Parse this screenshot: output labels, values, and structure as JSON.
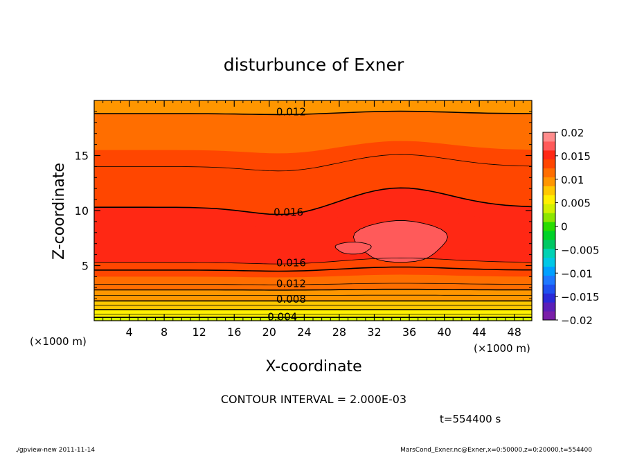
{
  "chart_data": {
    "type": "heatmap",
    "title": "disturbunce of Exner",
    "xlabel": "X-coordinate",
    "ylabel": "Z-coordinate",
    "x_unit": "(×1000 m)",
    "xlim": [
      0,
      50
    ],
    "ylim": [
      0,
      20
    ],
    "x_ticks": [
      "4",
      "8",
      "12",
      "16",
      "20",
      "24",
      "28",
      "32",
      "36",
      "40",
      "44",
      "48"
    ],
    "y_ticks": [
      "5",
      "10",
      "15"
    ],
    "colorbar": {
      "levels": [
        -0.02,
        -0.018,
        -0.016,
        -0.014,
        -0.012,
        -0.01,
        -0.008,
        -0.006,
        -0.004,
        -0.002,
        0,
        0.002,
        0.004,
        0.006,
        0.008,
        0.01,
        0.012,
        0.014,
        0.016,
        0.018,
        0.02
      ],
      "colors": [
        "#7a1fa8",
        "#5b1fb8",
        "#2a2ad8",
        "#1e50f0",
        "#1e78ff",
        "#00a0ff",
        "#00c8e6",
        "#00d2b4",
        "#00c864",
        "#00d228",
        "#28dc00",
        "#8ce600",
        "#d2f000",
        "#fff000",
        "#ffc800",
        "#ff9600",
        "#ff6e00",
        "#ff4600",
        "#ff2814",
        "#ff5a5a",
        "#ff8c8c"
      ],
      "tick_labels": [
        "0.02",
        "0.015",
        "0.01",
        "0.005",
        "0",
        "−0.005",
        "−0.01",
        "−0.015",
        "−0.02"
      ]
    },
    "contour_labels": [
      "0.012",
      "0.016",
      "0.016",
      "0.012",
      "0.008",
      "0.004"
    ],
    "field_bands": [
      {
        "z_top": 20,
        "value": 0.011
      },
      {
        "z_top": 18.8,
        "value": 0.0125
      },
      {
        "z_top": 17.4,
        "value": 0.0135
      },
      {
        "z_top": 15.5,
        "value": 0.0145
      },
      {
        "z_top": 14.0,
        "value": 0.0155
      },
      {
        "z_top": 10.3,
        "value": 0.0165
      },
      {
        "z_top": 9.0,
        "value": 0.0175
      },
      {
        "z_top": 6.2,
        "value": 0.0165
      },
      {
        "z_top": 5.3,
        "value": 0.0155
      },
      {
        "z_top": 4.6,
        "value": 0.0145
      },
      {
        "z_top": 4.0,
        "value": 0.0135
      },
      {
        "z_top": 3.3,
        "value": 0.0125
      },
      {
        "z_top": 2.8,
        "value": 0.0115
      },
      {
        "z_top": 2.3,
        "value": 0.0105
      },
      {
        "z_top": 1.8,
        "value": 0.0095
      },
      {
        "z_top": 1.4,
        "value": 0.0085
      },
      {
        "z_top": 1.0,
        "value": 0.0075
      },
      {
        "z_top": 0.6,
        "value": 0.0065
      },
      {
        "z_top": 0.3,
        "value": 0.0055
      }
    ],
    "contour_interval_text": "CONTOUR INTERVAL = 2.000E-03",
    "time_text": "t=554400 s"
  },
  "footer": {
    "left": "./gpview-new   2011-11-14",
    "right": "MarsCond_Exner.nc@Exner,x=0:50000,z=0:20000,t=554400"
  }
}
